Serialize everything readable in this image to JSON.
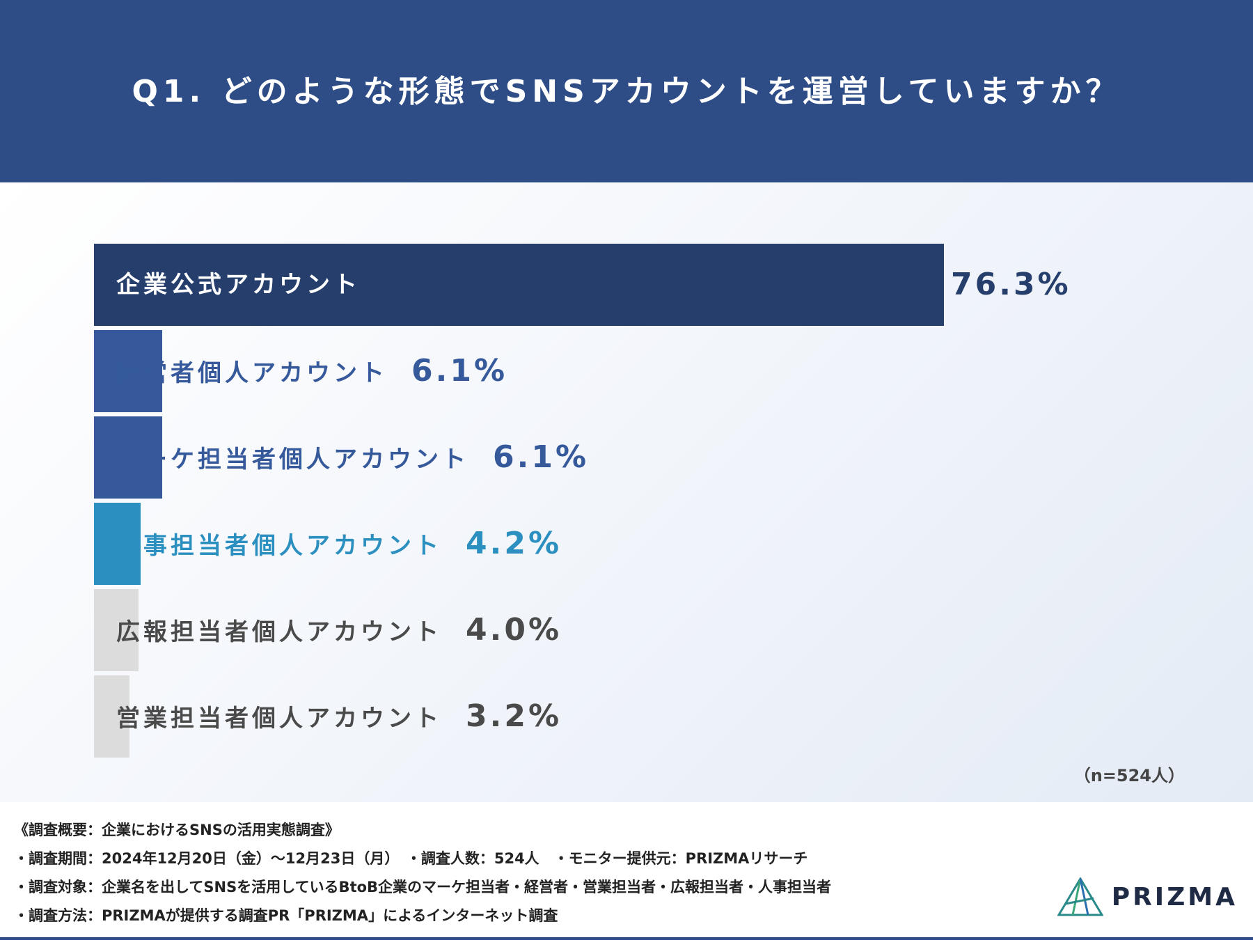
{
  "header": {
    "title": "Q1. どのような形態でSNSアカウントを運営していますか？"
  },
  "chart_data": {
    "type": "bar",
    "orientation": "horizontal",
    "title": "Q1. どのような形態でSNSアカウントを運営していますか？",
    "categories": [
      "企業公式アカウント",
      "経営者個人アカウント",
      "マーケ担当者個人アカウント",
      "人事担当者個人アカウント",
      "広報担当者個人アカウント",
      "営業担当者個人アカウント"
    ],
    "values": [
      76.3,
      6.1,
      6.1,
      4.2,
      4.0,
      3.2
    ],
    "value_labels": [
      "76.3%",
      "6.1%",
      "6.1%",
      "4.2%",
      "4.0%",
      "3.2%"
    ],
    "bar_colors": [
      "#263e6b",
      "#35599a",
      "#35599a",
      "#2b8fbf",
      "#dcdcdc",
      "#dcdcdc"
    ],
    "label_colors": [
      "#263e6b",
      "#35599a",
      "#35599a",
      "#2b8fbf",
      "#4a4a4a",
      "#4a4a4a"
    ],
    "xlim": [
      0,
      100
    ],
    "grid": false,
    "legend": "none"
  },
  "note": "（n=524人）",
  "footer": {
    "lines": [
      "《調査概要：企業におけるSNSの活用実態調査》",
      "・調査期間：2024年12月20日（金）～12月23日（月）　・調査人数：524人　・モニター提供元：PRIZMAリサーチ",
      "・調査対象：企業名を出してSNSを活用しているBtoB企業のマーケ担当者・経営者・営業担当者・広報担当者・人事担当者",
      "・調査方法：PRIZMAが提供する調査PR「PRIZMA」によるインターネット調査"
    ]
  },
  "logo": {
    "text": "PRIZMA"
  },
  "colors": {
    "header_bg": "#2e4c85",
    "footer_rule": "#2e4c85"
  }
}
